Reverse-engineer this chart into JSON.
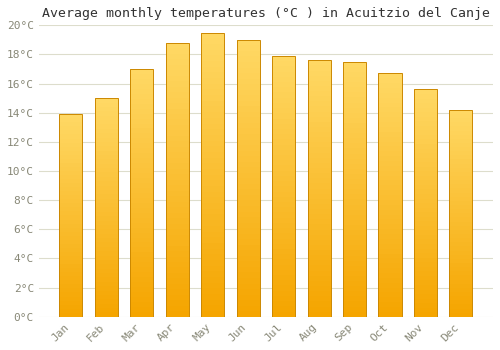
{
  "title": "Average monthly temperatures (°C ) in Acuitzio del Canje",
  "months": [
    "Jan",
    "Feb",
    "Mar",
    "Apr",
    "May",
    "Jun",
    "Jul",
    "Aug",
    "Sep",
    "Oct",
    "Nov",
    "Dec"
  ],
  "values": [
    13.9,
    15.0,
    17.0,
    18.8,
    19.5,
    19.0,
    17.9,
    17.6,
    17.5,
    16.7,
    15.6,
    14.2
  ],
  "bar_color_top": "#FFD966",
  "bar_color_bottom": "#F5A500",
  "bar_edge_color": "#CC8800",
  "background_color": "#FFFFFF",
  "grid_color": "#DDDDCC",
  "ylim": [
    0,
    20
  ],
  "ytick_step": 2,
  "title_fontsize": 9.5,
  "tick_fontsize": 8,
  "tick_label_color": "#888877",
  "bar_width": 0.65
}
